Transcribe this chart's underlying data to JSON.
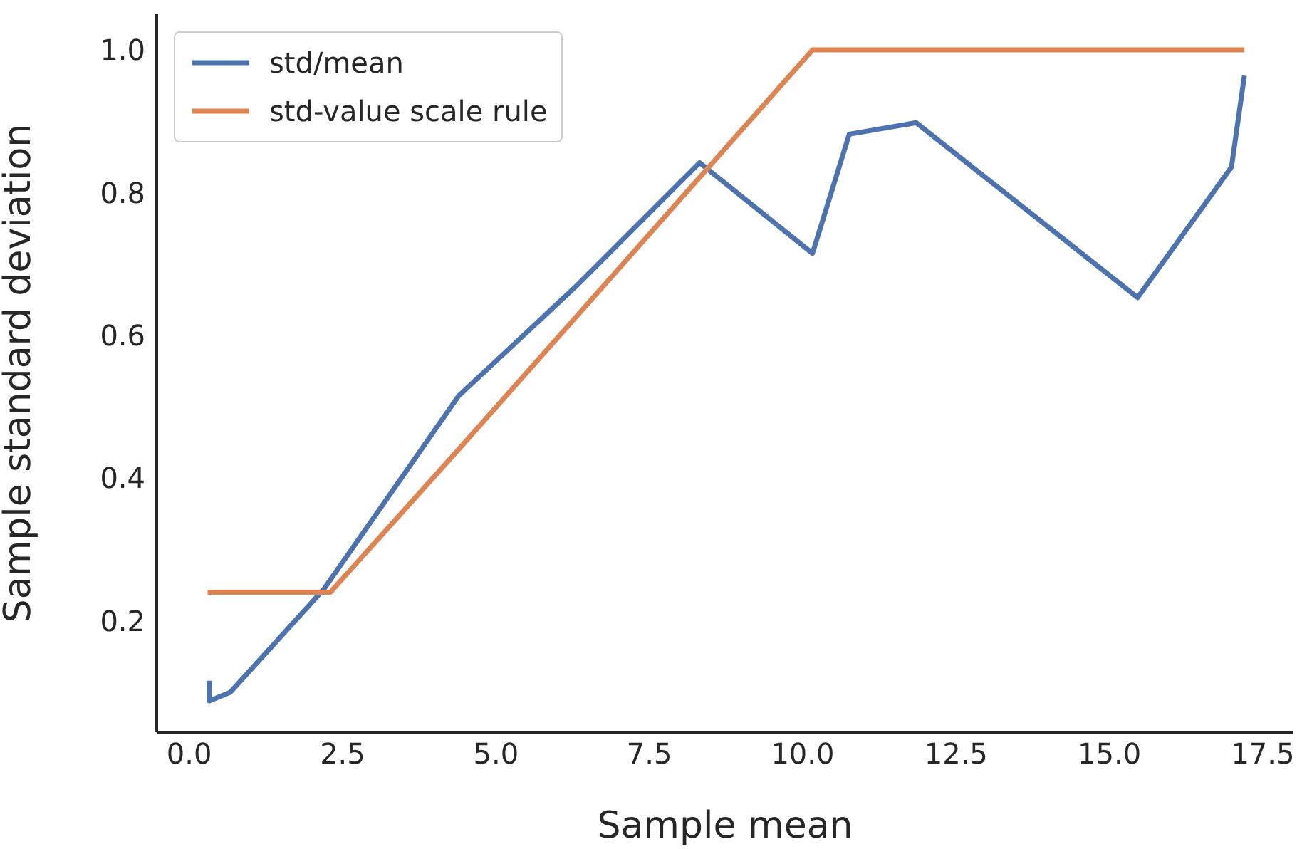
{
  "chart_data": {
    "type": "line",
    "xlabel": "Sample mean",
    "ylabel": "Sample standard deviation",
    "xlim": [
      -0.53,
      18.0
    ],
    "ylim": [
      0.044,
      1.05
    ],
    "xticks": [
      {
        "value": 0,
        "label": "0.0"
      },
      2.5,
      {
        "value": 5,
        "label": "5.0"
      },
      7.5,
      {
        "value": 10,
        "label": "10.0"
      },
      12.5,
      {
        "value": 15,
        "label": "15.0"
      },
      17.5
    ],
    "yticks": [
      0.2,
      0.4,
      0.6,
      0.8,
      {
        "value": 1,
        "label": "1.0"
      }
    ],
    "grid": false,
    "legend": "top left",
    "line_style": "solid",
    "marker": "none",
    "series": [
      {
        "name": "std/mean",
        "color": "#4c72b0",
        "x": [
          0.33,
          0.33,
          0.67,
          2.2,
          4.39,
          6.32,
          8.32,
          10.16,
          10.76,
          11.85,
          15.46,
          16.99,
          17.2
        ],
        "values": [
          0.116,
          0.088,
          0.1,
          0.245,
          0.515,
          0.67,
          0.842,
          0.715,
          0.882,
          0.898,
          0.653,
          0.836,
          0.964
        ]
      },
      {
        "name": "std-value scale rule",
        "color": "#dd8452",
        "x": [
          0.3,
          2.3,
          4.39,
          10.16,
          17.2
        ],
        "values": [
          0.24,
          0.24,
          0.44,
          1.0,
          1.0
        ]
      }
    ]
  }
}
